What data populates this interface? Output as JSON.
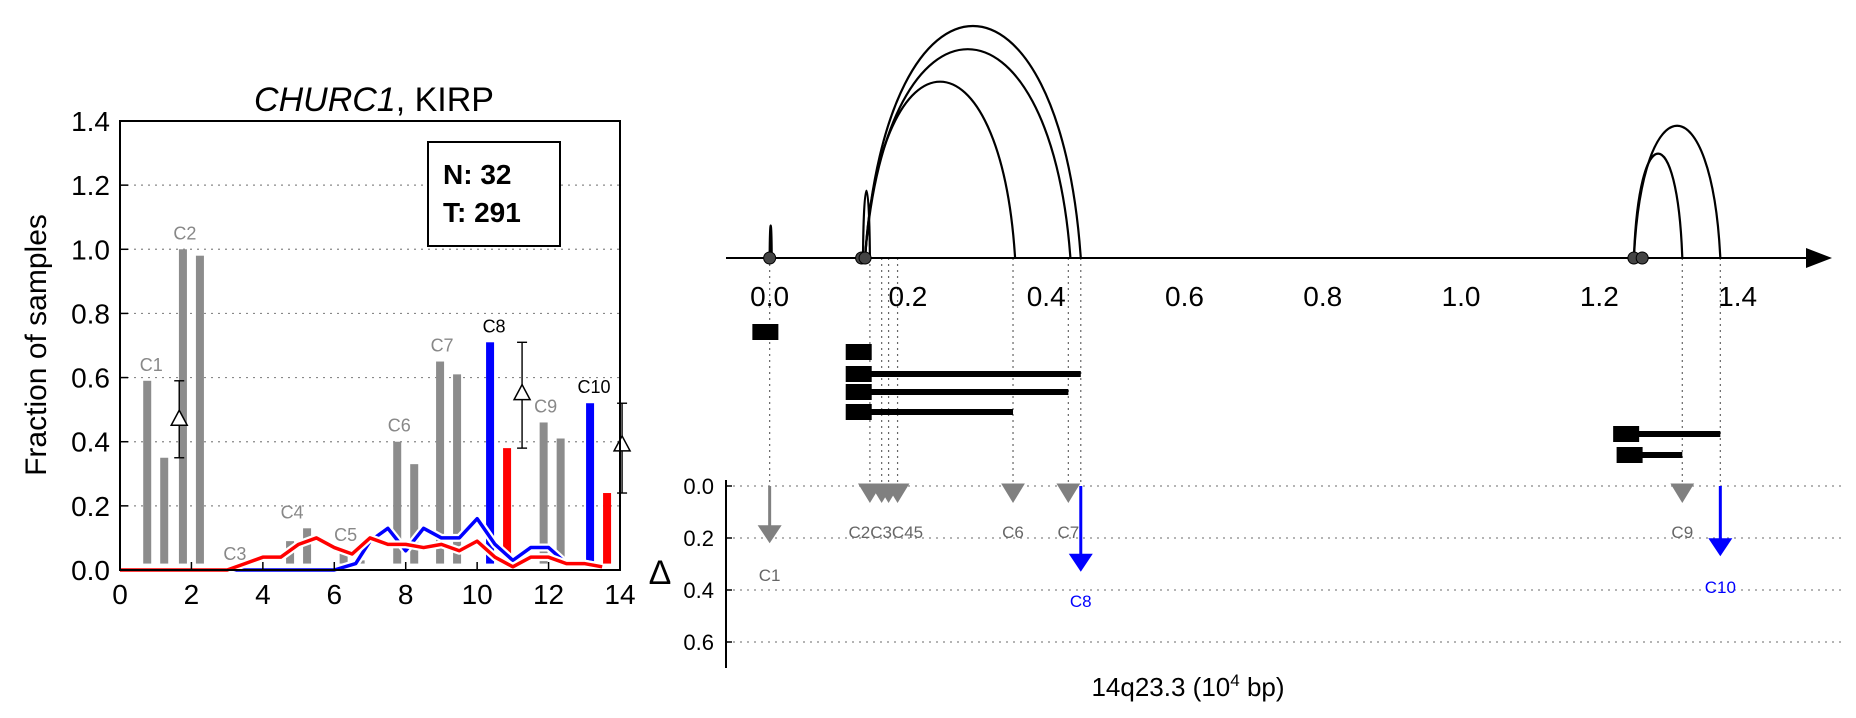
{
  "chart_data": [
    {
      "type": "bar",
      "title_gene": "CHURC1",
      "title_rest": ", KIRP",
      "ylabel": "Fraction of samples",
      "xlim": [
        0,
        14
      ],
      "ylim": [
        0,
        1.4
      ],
      "xticks": [
        "0",
        "2",
        "4",
        "6",
        "8",
        "10",
        "12",
        "14"
      ],
      "yticks": [
        "0.0",
        "0.2",
        "0.4",
        "0.6",
        "0.8",
        "1.0",
        "1.2",
        "1.4"
      ],
      "grid": "horizontal dotted",
      "legend_box": {
        "n_label": "N: 32",
        "t_label": "T: 291",
        "placement": "top-right"
      },
      "clusters": [
        {
          "label": "C1",
          "x": 1,
          "normal": 0.59,
          "tumor": 0.35,
          "delta_mean": 0.47,
          "delta_low": 0.35,
          "delta_high": 0.59,
          "highlight": false
        },
        {
          "label": "C2",
          "x": 2,
          "normal": 1.0,
          "tumor": 0.98,
          "highlight": false
        },
        {
          "label": "C3",
          "x": 3.4,
          "normal": 0.0,
          "tumor": 0.0,
          "highlight": false
        },
        {
          "label": "C4",
          "x": 5,
          "normal": 0.09,
          "tumor": 0.13,
          "highlight": false
        },
        {
          "label": "C5",
          "x": 6.5,
          "normal": 0.06,
          "tumor": 0.03,
          "highlight": false
        },
        {
          "label": "C6",
          "x": 8,
          "normal": 0.4,
          "tumor": 0.33,
          "highlight": false
        },
        {
          "label": "C7",
          "x": 9.2,
          "normal": 0.65,
          "tumor": 0.61,
          "highlight": false
        },
        {
          "label": "C8",
          "x": 10.6,
          "normal": 0.71,
          "tumor": 0.38,
          "delta_mean": 0.55,
          "delta_low": 0.38,
          "delta_high": 0.71,
          "highlight": true
        },
        {
          "label": "C9",
          "x": 12.1,
          "normal": 0.46,
          "tumor": 0.41,
          "highlight": false
        },
        {
          "label": "C10",
          "x": 13.4,
          "normal": 0.52,
          "tumor": 0.24,
          "delta_mean": 0.39,
          "delta_low": 0.24,
          "delta_high": 0.52,
          "highlight": true
        }
      ],
      "series": [
        {
          "color": "#0000ff",
          "x": [
            0,
            1,
            2,
            3,
            4,
            5,
            6,
            6.6,
            7,
            7.5,
            8,
            8.5,
            9,
            9.5,
            10,
            10.5,
            11,
            11.5,
            12,
            12.5,
            13,
            13.5
          ],
          "y": [
            0,
            0,
            0,
            0,
            0,
            0,
            0,
            0.02,
            0.09,
            0.13,
            0.06,
            0.13,
            0.1,
            0.1,
            0.16,
            0.08,
            0.03,
            0.07,
            0.07,
            0.02,
            0.02,
            0.01
          ]
        },
        {
          "color": "#ff0000",
          "x": [
            0,
            1,
            2,
            3,
            3.5,
            4,
            4.5,
            5,
            5.5,
            6,
            6.5,
            7,
            7.5,
            8,
            8.5,
            9,
            9.5,
            10,
            10.5,
            11,
            11.5,
            12,
            12.5,
            13,
            13.5
          ],
          "y": [
            0,
            0,
            0,
            0,
            0.02,
            0.04,
            0.04,
            0.08,
            0.1,
            0.07,
            0.05,
            0.1,
            0.08,
            0.08,
            0.07,
            0.08,
            0.06,
            0.09,
            0.04,
            0.01,
            0.04,
            0.04,
            0.02,
            0.02,
            0.01
          ]
        }
      ],
      "colors": {
        "normal": "#8c8c8c",
        "highlight_normal": "#0000ff",
        "highlight_tumor": "#ff0000"
      }
    },
    {
      "type": "diagram",
      "xlabel_main": "14q23.3 (10",
      "xlabel_sup": "4",
      "xlabel_tail": " bp)",
      "xlim": [
        -0.04,
        1.47
      ],
      "xticks": [
        "0.0",
        "0.2",
        "0.4",
        "0.6",
        "0.8",
        "1.0",
        "1.2",
        "1.4"
      ],
      "delta_label": "Δ",
      "delta_ticks": [
        "0.0",
        "0.2",
        "0.4",
        "0.6"
      ],
      "arcs": [
        {
          "from": 0.138,
          "to": 0.355,
          "height": 0.76
        },
        {
          "from": 0.138,
          "to": 0.435,
          "height": 0.9
        },
        {
          "from": 0.138,
          "to": 0.45,
          "height": 1.0
        },
        {
          "from": 1.25,
          "to": 1.32,
          "height": 0.45
        },
        {
          "from": 1.25,
          "to": 1.375,
          "height": 0.57
        },
        {
          "from": 0.0,
          "to": 0.003,
          "height": 0.14
        },
        {
          "from": 0.135,
          "to": 0.145,
          "height": 0.29
        }
      ],
      "exon_nodes": [
        0.0,
        0.133,
        0.138,
        1.25,
        1.262
      ],
      "transcripts": [
        {
          "start": -0.025,
          "end": 0.005,
          "row": 0
        },
        {
          "start": 0.11,
          "end": 0.145,
          "row": 1
        },
        {
          "start": 0.11,
          "end": 0.45,
          "row": 2
        },
        {
          "start": 0.11,
          "end": 0.432,
          "row": 3
        },
        {
          "start": 0.11,
          "end": 0.352,
          "row": 4
        },
        {
          "start": 1.22,
          "end": 1.375,
          "row": 5
        },
        {
          "start": 1.225,
          "end": 1.32,
          "row": 6
        }
      ],
      "clusters": [
        {
          "label": "C1",
          "pos": 0.0,
          "delta": 0.22,
          "type": "gray-arrow"
        },
        {
          "label": "C2",
          "pos": 0.145,
          "delta": 0.0,
          "type": "tri"
        },
        {
          "label": "C3",
          "pos": 0.162,
          "delta": 0.0,
          "type": "tri"
        },
        {
          "label": "C4",
          "pos": 0.172,
          "delta": 0.0,
          "type": "tri"
        },
        {
          "label": "C5",
          "pos": 0.185,
          "delta": 0.0,
          "type": "tri"
        },
        {
          "label": "C6",
          "pos": 0.352,
          "delta": 0.0,
          "type": "tri"
        },
        {
          "label": "C7",
          "pos": 0.432,
          "delta": 0.0,
          "type": "tri"
        },
        {
          "label": "C8",
          "pos": 0.45,
          "delta": 0.33,
          "type": "blue-arrow"
        },
        {
          "label": "C9",
          "pos": 1.32,
          "delta": 0.0,
          "type": "tri"
        },
        {
          "label": "C10",
          "pos": 1.375,
          "delta": 0.27,
          "type": "blue-arrow"
        }
      ],
      "cluster_text_left": "C2C3C45",
      "colors": {
        "gray": "#808080",
        "blue": "#0000ff"
      }
    }
  ]
}
